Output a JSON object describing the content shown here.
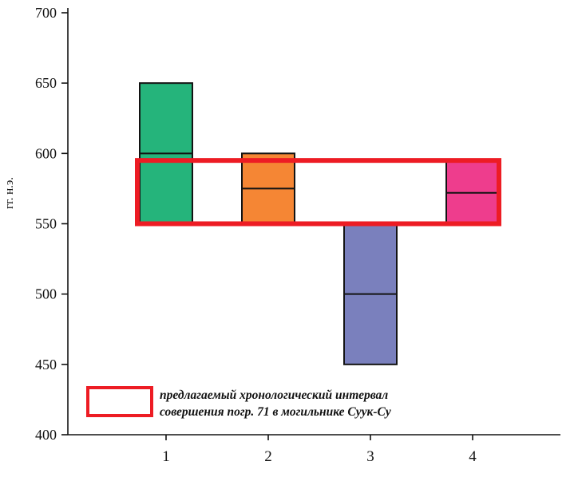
{
  "chart_data": {
    "type": "bar",
    "variant": "floating-interval-bars",
    "title": "",
    "ylabel": "гг. н.э.",
    "ylim": [
      400,
      700
    ],
    "yticks": [
      400,
      450,
      500,
      550,
      600,
      650,
      700
    ],
    "categories": [
      "1",
      "2",
      "3",
      "4"
    ],
    "bars": [
      {
        "category": "1",
        "low": 550,
        "high": 650,
        "divider": 600,
        "color": "#25b47b"
      },
      {
        "category": "2",
        "low": 550,
        "high": 600,
        "divider": 575,
        "color": "#f58634"
      },
      {
        "category": "3",
        "low": 450,
        "high": 550,
        "divider": 500,
        "color": "#7a80bd"
      },
      {
        "category": "4",
        "low": 550,
        "high": 595,
        "divider": 572,
        "color": "#ee3d8d"
      }
    ],
    "highlight_band": {
      "low": 550,
      "high": 595,
      "stroke": "#ed1c24"
    },
    "legend": {
      "swatch_stroke": "#ed1c24",
      "lines": [
        "предлагаемый хронологический интервал",
        "совершения погр. 71 в могильнике Суук-Су"
      ]
    },
    "grid": false,
    "legend_position": "bottom-left"
  }
}
